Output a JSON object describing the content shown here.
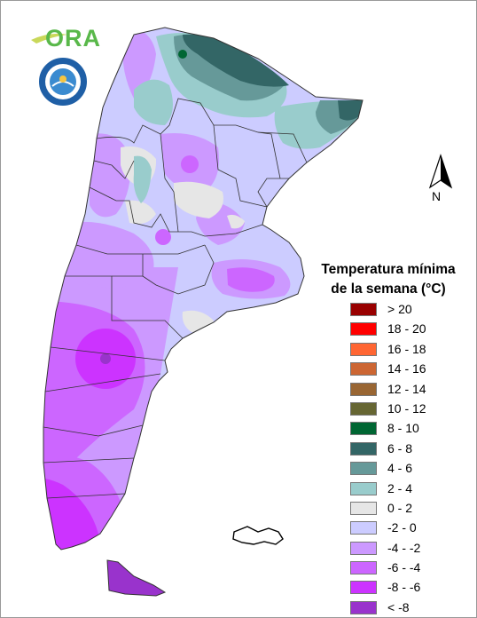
{
  "logo": {
    "text": "ORA",
    "seal_name": "smn-seal"
  },
  "north_arrow": {
    "label": "N"
  },
  "legend": {
    "title_line1": "Temperatura mínima",
    "title_line2": "de la semana (°C)",
    "items": [
      {
        "label": "> 20",
        "color": "#990000"
      },
      {
        "label": "18 - 20",
        "color": "#ff0000"
      },
      {
        "label": "16 - 18",
        "color": "#ff6633"
      },
      {
        "label": "14 - 16",
        "color": "#cc6633"
      },
      {
        "label": "12 - 14",
        "color": "#996633"
      },
      {
        "label": "10 - 12",
        "color": "#666633"
      },
      {
        "label": "8 - 10",
        "color": "#006633"
      },
      {
        "label": "6 - 8",
        "color": "#336666"
      },
      {
        "label": "4 - 6",
        "color": "#669999"
      },
      {
        "label": "2 - 4",
        "color": "#99cccc"
      },
      {
        "label": "0 - 2",
        "color": "#e6e6e6"
      },
      {
        "label": "-2 - 0",
        "color": "#ccccff"
      },
      {
        "label": "-4 - -2",
        "color": "#cc99ff"
      },
      {
        "label": "-6 - -4",
        "color": "#cc66ff"
      },
      {
        "label": "-8 - -6",
        "color": "#cc33ff"
      },
      {
        "label": "< -8",
        "color": "#9933cc"
      }
    ]
  }
}
